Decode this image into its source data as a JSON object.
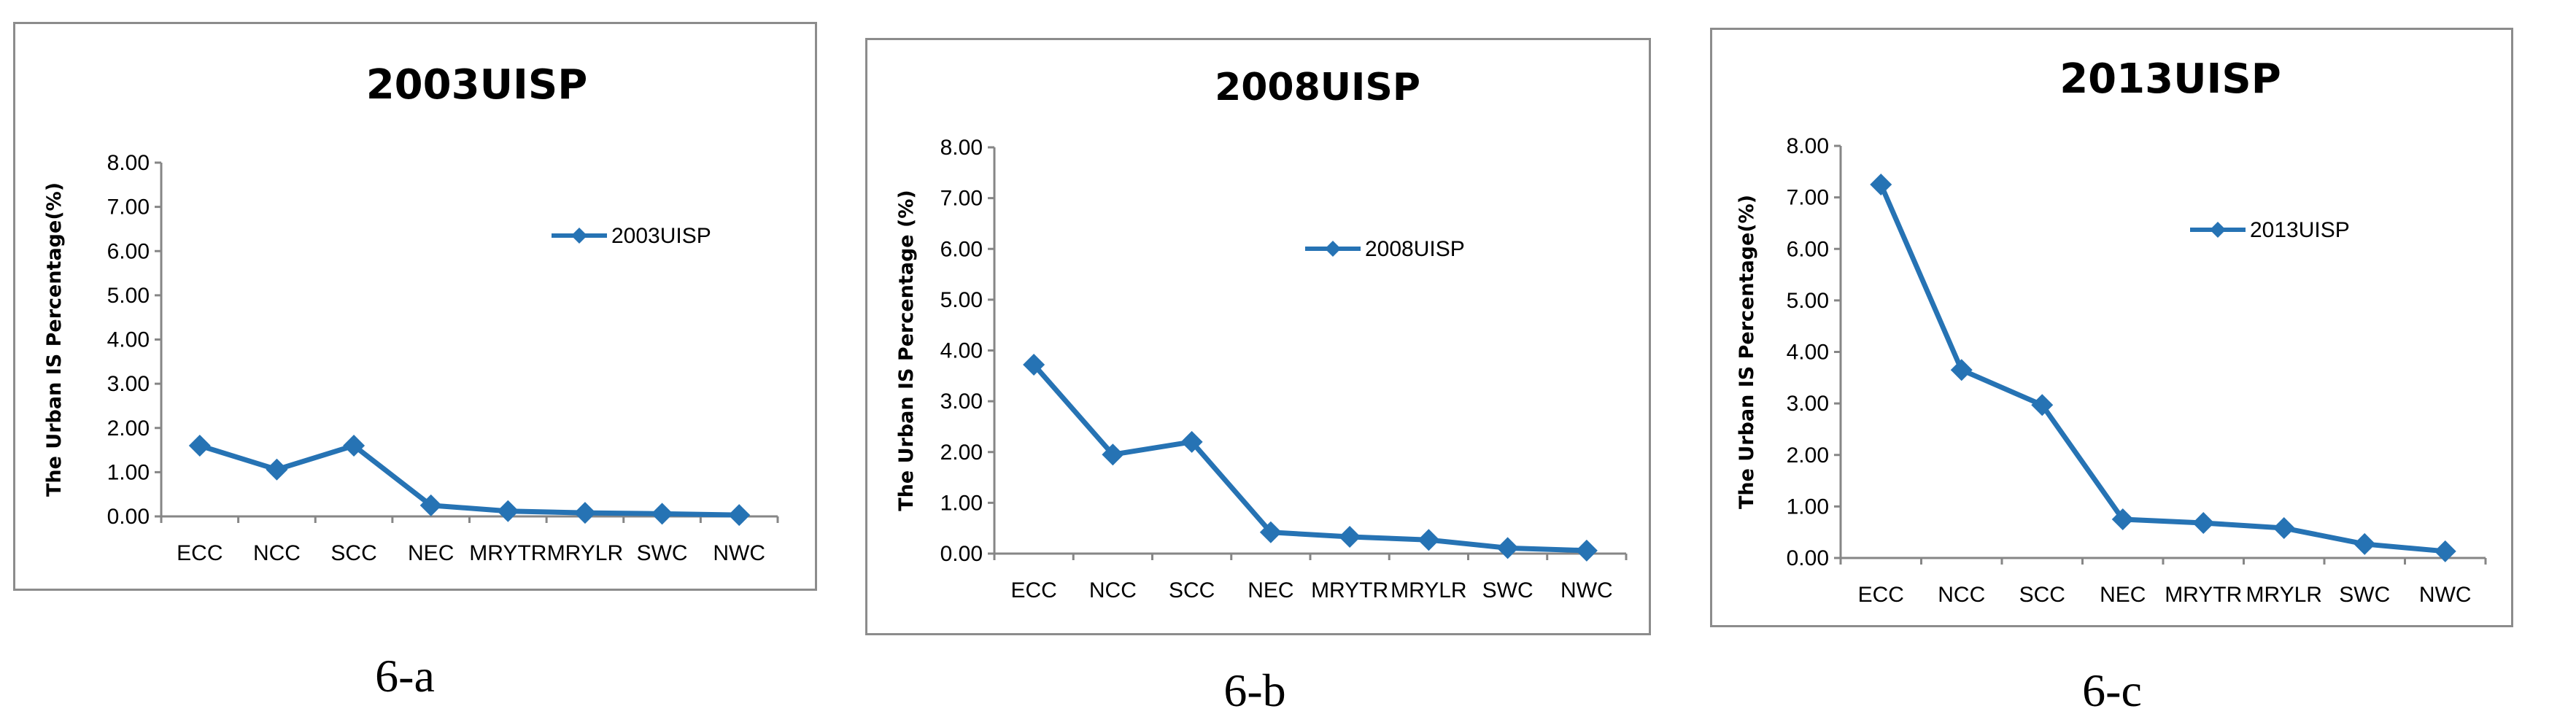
{
  "figure": {
    "captions": [
      "6-a",
      "6-b",
      "6-c"
    ]
  },
  "style": {
    "line_color": "#2673b4",
    "axis_color": "#868686",
    "border_color": "#8c8c8c"
  },
  "chart_data": [
    {
      "type": "line",
      "title": "2003UISP",
      "ylabel": "The Urban IS Percentage(%)",
      "xlabel": "",
      "categories": [
        "ECC",
        "NCC",
        "SCC",
        "NEC",
        "MRYTR",
        "MRYLR",
        "SWC",
        "NWC"
      ],
      "ylim": [
        0,
        8
      ],
      "yticks": [
        "0.00",
        "1.00",
        "2.00",
        "3.00",
        "4.00",
        "5.00",
        "6.00",
        "7.00",
        "8.00"
      ],
      "grid": false,
      "legend_position": "top-right",
      "series": [
        {
          "name": "2003UISP",
          "values": [
            1.6,
            1.06,
            1.6,
            0.25,
            0.12,
            0.08,
            0.06,
            0.03
          ]
        }
      ]
    },
    {
      "type": "line",
      "title": "2008UISP",
      "ylabel": "The Urban IS Percentage (%)",
      "xlabel": "",
      "categories": [
        "ECC",
        "NCC",
        "SCC",
        "NEC",
        "MRYTR",
        "MRYLR",
        "SWC",
        "NWC"
      ],
      "ylim": [
        0,
        8
      ],
      "yticks": [
        "0.00",
        "1.00",
        "2.00",
        "3.00",
        "4.00",
        "5.00",
        "6.00",
        "7.00",
        "8.00"
      ],
      "grid": false,
      "legend_position": "top-right",
      "series": [
        {
          "name": "2008UISP",
          "values": [
            3.72,
            1.95,
            2.2,
            0.42,
            0.33,
            0.27,
            0.11,
            0.06
          ]
        }
      ]
    },
    {
      "type": "line",
      "title": "2013UISP",
      "ylabel": "The Urban IS Percentage(%)",
      "xlabel": "",
      "categories": [
        "ECC",
        "NCC",
        "SCC",
        "NEC",
        "MRYTR",
        "MRYLR",
        "SWC",
        "NWC"
      ],
      "ylim": [
        0,
        8
      ],
      "yticks": [
        "0.00",
        "1.00",
        "2.00",
        "3.00",
        "4.00",
        "5.00",
        "6.00",
        "7.00",
        "8.00"
      ],
      "grid": false,
      "legend_position": "top-right",
      "series": [
        {
          "name": "2013UISP",
          "values": [
            7.25,
            3.65,
            2.97,
            0.75,
            0.68,
            0.58,
            0.27,
            0.13
          ]
        }
      ]
    }
  ]
}
